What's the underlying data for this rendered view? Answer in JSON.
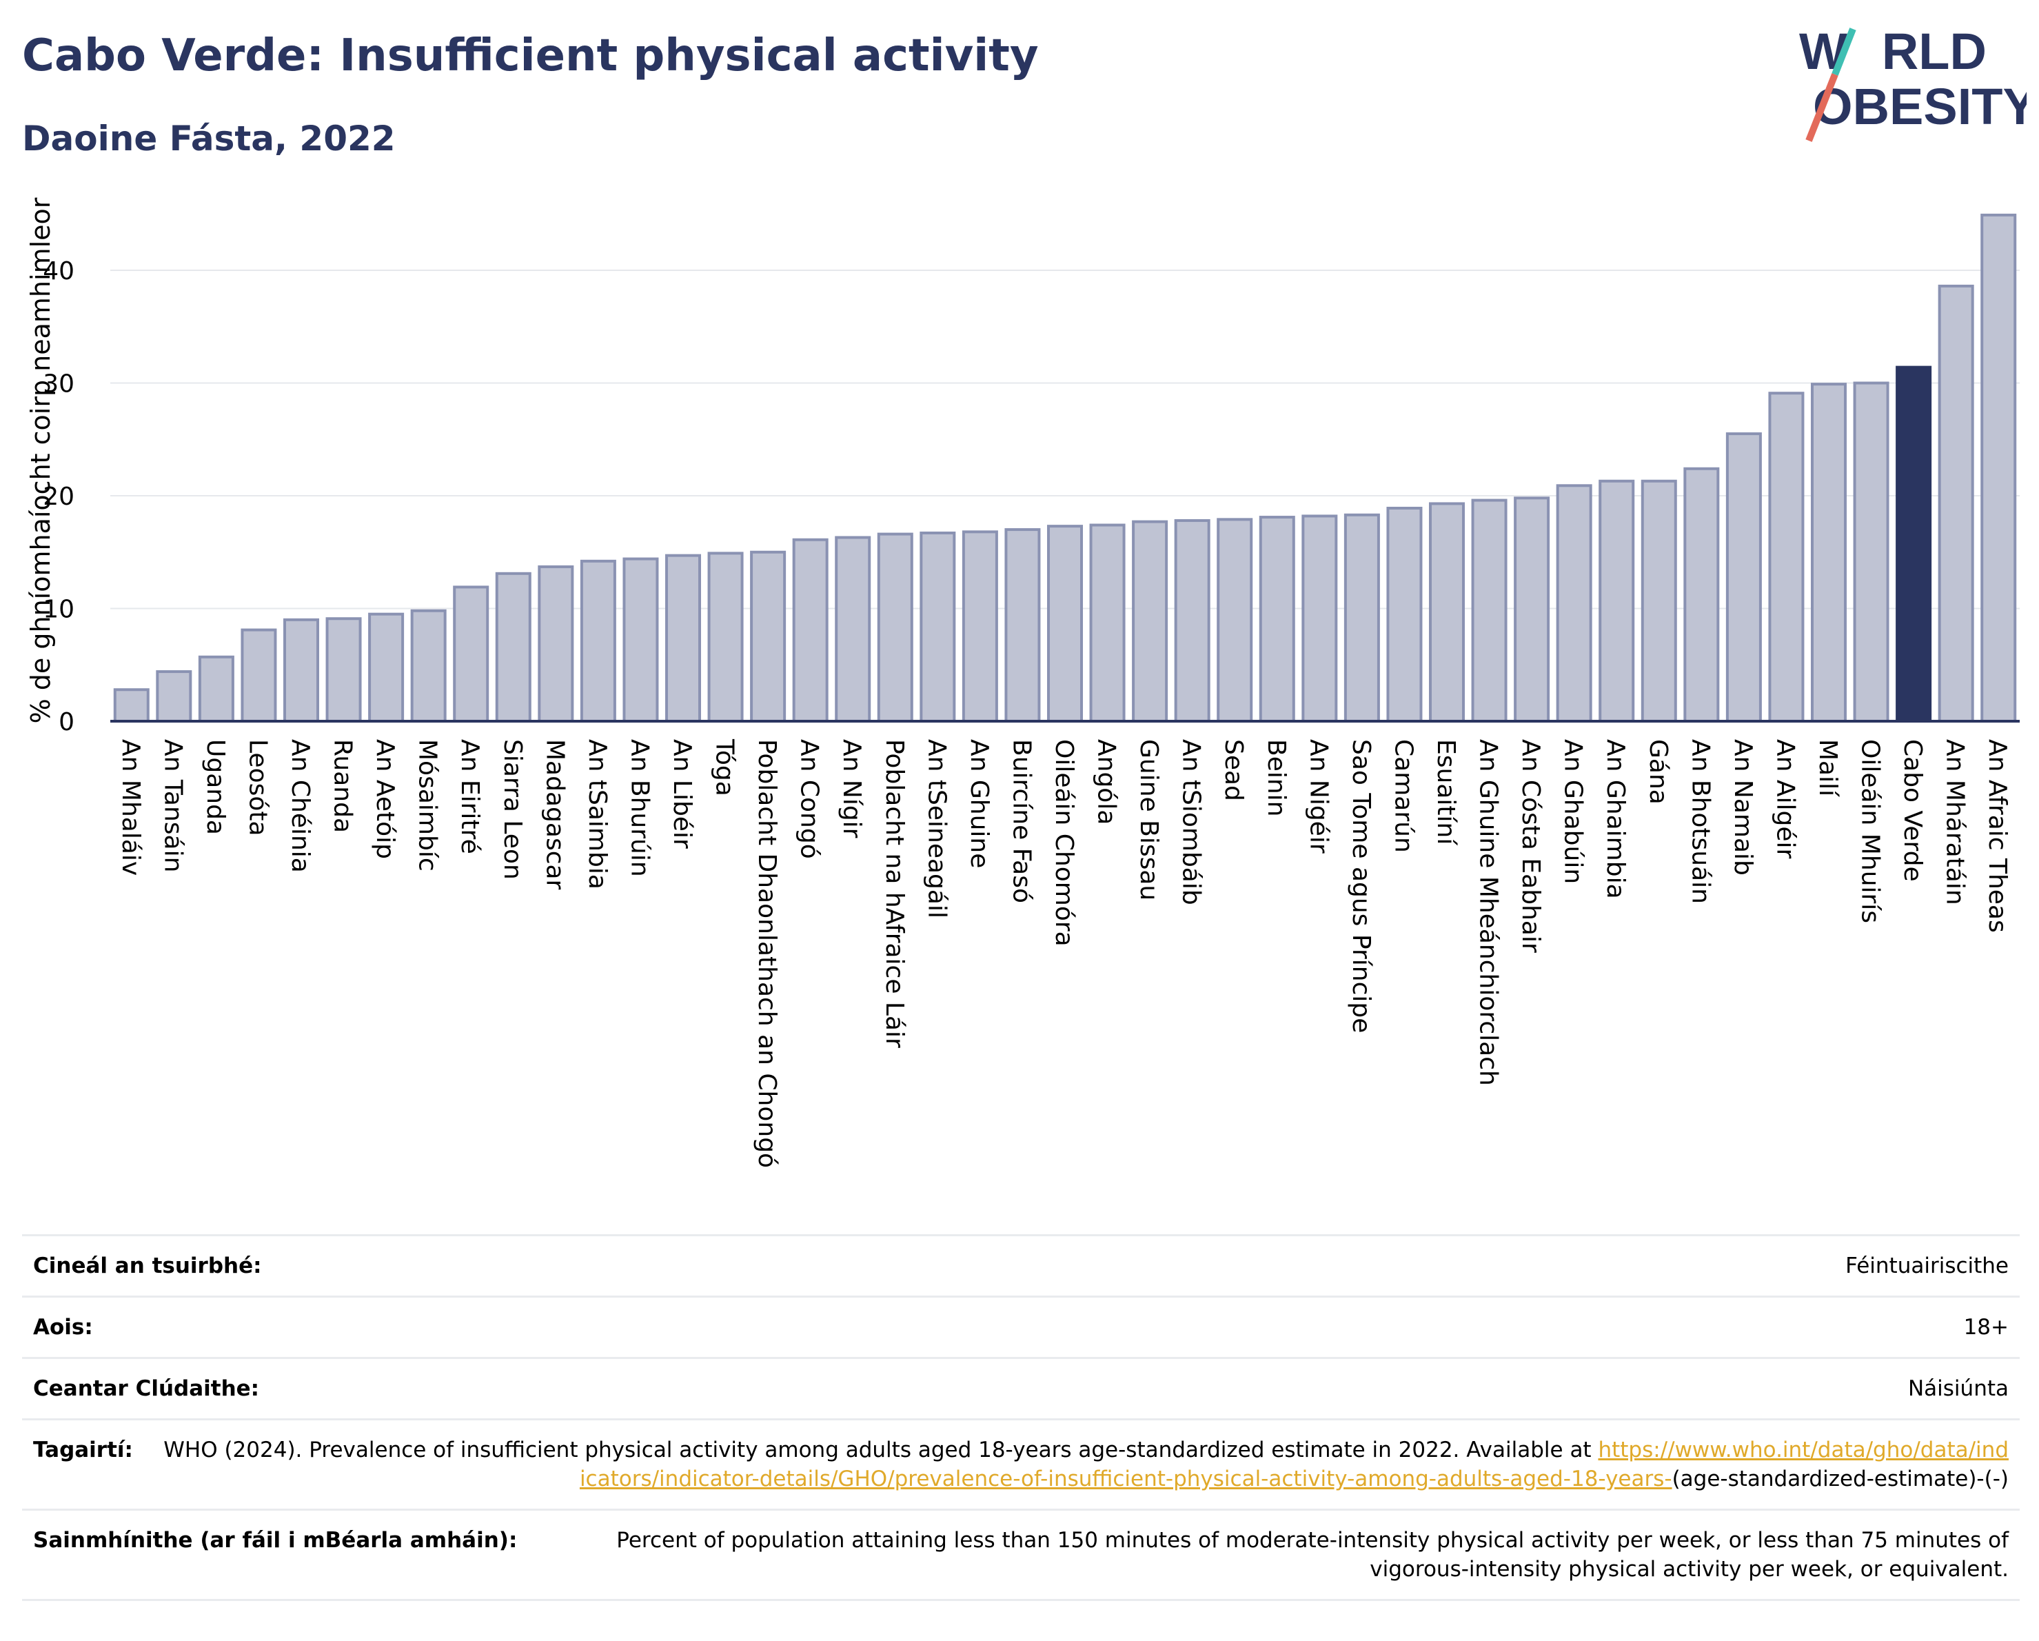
{
  "header": {
    "title": "Cabo Verde: Insufficient physical activity",
    "subtitle": "Daoine Fásta, 2022"
  },
  "logo": {
    "line1_a": "W",
    "line1_b": "RLD",
    "line2_a": "O",
    "line2_b": "BESITY"
  },
  "colors": {
    "bar": "#bfc3d3",
    "bar_stroke": "#8a92b2",
    "highlight": "#2a3560",
    "axis": "#2a3560",
    "grid": "#e6e8ec",
    "link": "#e0a92a"
  },
  "chart_data": {
    "type": "bar",
    "ylabel": "% de ghníomhaíocht coirp neamhimleor",
    "ylim": [
      0,
      46
    ],
    "yticks": [
      0,
      10,
      20,
      30,
      40
    ],
    "grid": true,
    "highlight": "Cabo Verde",
    "categories": [
      "An Mhaláiv",
      "An Tansáin",
      "Uganda",
      "Leosóta",
      "An Chéinia",
      "Ruanda",
      "An Aetóip",
      "Mósaimbíc",
      "An Eiritré",
      "Siarra Leon",
      "Madagascar",
      "An tSaimbia",
      "An Bhurúin",
      "An Libéir",
      "Tóga",
      "Poblacht Dhaonlathach an Chongó",
      "An Congó",
      "An Nígir",
      "Poblacht na hAfraice Láir",
      "An tSeineagáil",
      "An Ghuine",
      "Buircíne Fasó",
      "Oileáin Chomóra",
      "Angóla",
      "Guine Bissau",
      "An tSiombáib",
      "Sead",
      "Beinin",
      "An Nigéir",
      "Sao Tome agus Príncipe",
      "Camarún",
      "Esuaitíní",
      "An Ghuine Mheánchiorclach",
      "An Cósta Eabhair",
      "An Ghabúin",
      "An Ghaimbia",
      "Gána",
      "An Bhotsuáin",
      "An Namaib",
      "An Ailgéir",
      "Mailí",
      "Oileáin Mhuirís",
      "Cabo Verde",
      "An Mháratáin",
      "An Afraic Theas"
    ],
    "values": [
      2.8,
      4.4,
      5.7,
      8.1,
      9.0,
      9.1,
      9.5,
      9.8,
      11.9,
      13.1,
      13.7,
      14.2,
      14.4,
      14.7,
      14.9,
      15.0,
      16.1,
      16.3,
      16.6,
      16.7,
      16.8,
      17.0,
      17.3,
      17.4,
      17.7,
      17.8,
      17.9,
      18.1,
      18.2,
      18.3,
      18.9,
      19.3,
      19.6,
      19.8,
      20.9,
      21.3,
      21.3,
      22.4,
      25.5,
      29.1,
      29.9,
      30.0,
      31.4,
      38.6,
      44.9
    ]
  },
  "meta": {
    "rows": [
      {
        "label": "Cineál an tsuirbhé:",
        "value": "Féintuairiscithe"
      },
      {
        "label": "Aois:",
        "value": "18+"
      },
      {
        "label": "Ceantar Clúdaithe:",
        "value": "Náisiúnta"
      }
    ],
    "references": {
      "label": "Tagairtí:",
      "text": "WHO (2024). Prevalence of insufficient physical activity among adults aged 18-years age-standardized estimate in 2022. Available at",
      "link": "https://www.who.int/data/gho/data/indicators/indicator-details/GHO/prevalence-of-insufficient-physical-activity-among-adults-aged-18-years-",
      "suffix": "(age-standardized-estimate)-(-)"
    },
    "definition": {
      "label": "Sainmhínithe (ar fáil i mBéarla amháin):",
      "value": "Percent of population attaining less than 150 minutes of moderate-intensity physical activity per week, or less than 75 minutes of vigorous-intensity physical activity per week, or equivalent."
    }
  }
}
